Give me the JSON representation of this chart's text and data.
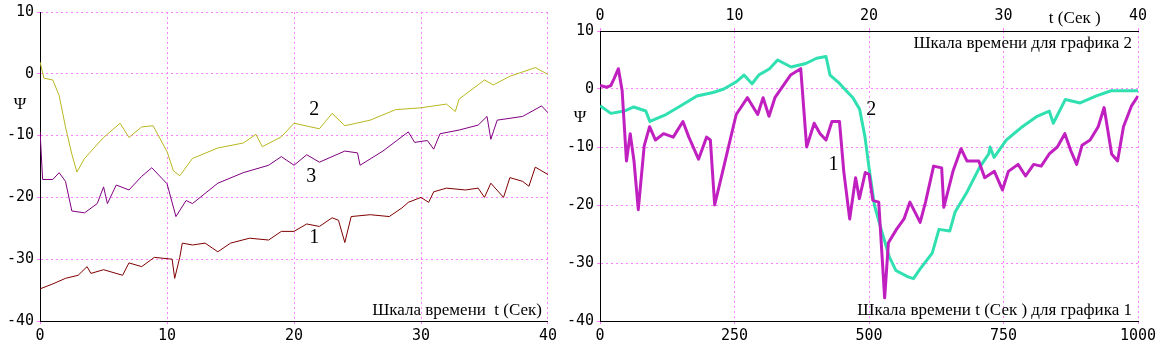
{
  "chart_data": [
    {
      "type": "line",
      "ylabel": "Ψ",
      "xlabel": "Шкала времени  t (Сек)",
      "xlim": [
        0,
        40
      ],
      "xticks": [
        0,
        10,
        20,
        30,
        40
      ],
      "ylim": [
        -40,
        10
      ],
      "yticks": [
        -40,
        -30,
        -20,
        -10,
        0,
        10
      ],
      "grid": true,
      "legend": false,
      "line_style": "solid",
      "series": [
        {
          "name": "1",
          "color": "#800000",
          "x": [
            0,
            1,
            2,
            3,
            3.7,
            4,
            5,
            6.5,
            7,
            8,
            9,
            10.4,
            10.6,
            11,
            11.2,
            12,
            13,
            14,
            15,
            16.5,
            18,
            19,
            20,
            21,
            22,
            23,
            23.5,
            24,
            24.5,
            26,
            27.5,
            28.5,
            29,
            30,
            30.6,
            31,
            32,
            33.5,
            34.5,
            35,
            35.5,
            36.5,
            37,
            38,
            38.5,
            39,
            40
          ],
          "values": [
            -34.8,
            -34,
            -33.1,
            -32.6,
            -31.2,
            -32.3,
            -31.7,
            -32.6,
            -30.6,
            -31.2,
            -29.7,
            -30,
            -33.1,
            -29.7,
            -27.4,
            -27.7,
            -27.4,
            -28.8,
            -27.4,
            -26.6,
            -26.9,
            -25.5,
            -25.5,
            -24.3,
            -24.7,
            -23.3,
            -23.7,
            -27.3,
            -23.1,
            -22.8,
            -23.1,
            -21.7,
            -20.8,
            -20,
            -20.8,
            -19.1,
            -18.5,
            -18.8,
            -18.5,
            -20,
            -17.7,
            -20,
            -16.8,
            -17.4,
            -18.2,
            -15.1,
            -16.3
          ]
        },
        {
          "name": "2",
          "color": "#b8b820",
          "x": [
            0,
            0.3,
            1,
            1.5,
            2,
            2.5,
            2.9,
            3.5,
            5,
            6.3,
            7,
            8,
            8.9,
            10,
            10.5,
            11,
            12,
            14,
            16,
            17,
            17.5,
            19,
            20,
            22,
            23,
            24,
            26,
            28,
            30,
            32,
            32.7,
            33,
            35,
            35.7,
            37,
            39,
            40
          ],
          "values": [
            1.9,
            -0.7,
            -1,
            -3.5,
            -8.6,
            -13,
            -15.9,
            -13.7,
            -10.3,
            -8,
            -10.3,
            -8.6,
            -8.4,
            -12.6,
            -15.7,
            -16.5,
            -13.7,
            -12,
            -11.2,
            -9.8,
            -11.8,
            -10.2,
            -8,
            -8.9,
            -6.4,
            -8.4,
            -7.5,
            -5.8,
            -5.5,
            -4.9,
            -6.1,
            -4.1,
            -1,
            -1.8,
            -0.4,
            1,
            -0.1
          ]
        },
        {
          "name": "3",
          "color": "#800080",
          "x": [
            0,
            0.2,
            1,
            1.5,
            2,
            2.5,
            3.5,
            4.5,
            5,
            5.3,
            6,
            7,
            8,
            8.8,
            10,
            10.7,
            11.5,
            12,
            14,
            16,
            18,
            19,
            20,
            21,
            22,
            24,
            25,
            25.2,
            27,
            29,
            29.5,
            30.5,
            31,
            31.5,
            33,
            34.5,
            35.2,
            35.5,
            36,
            38,
            39.5,
            40
          ],
          "values": [
            -9.4,
            -17.1,
            -17.1,
            -16,
            -17.4,
            -22.2,
            -22.5,
            -21,
            -18.3,
            -21,
            -18,
            -18.8,
            -16.6,
            -15.2,
            -17.8,
            -23.1,
            -20.5,
            -21,
            -17.7,
            -16,
            -14.8,
            -13.4,
            -14.8,
            -13.1,
            -14.3,
            -12.5,
            -12.8,
            -14.8,
            -12.5,
            -9.4,
            -11.1,
            -10.8,
            -12.2,
            -9.7,
            -9.1,
            -8.3,
            -6.9,
            -10.6,
            -7.5,
            -6.9,
            -5.2,
            -6.3
          ]
        }
      ]
    },
    {
      "type": "line",
      "ylabel": "Ψ",
      "xlabel": "Шкала времени t (Сек ) для графика 1",
      "x2label": "t (Сек )",
      "annotations": [
        "Шкала времени для графика 2"
      ],
      "xlim": [
        0,
        1000
      ],
      "xticks": [
        0,
        250,
        500,
        750,
        1000
      ],
      "x2lim": [
        0,
        40
      ],
      "x2ticks": [
        0,
        10,
        20,
        30,
        40
      ],
      "ylim": [
        -40,
        10
      ],
      "yticks": [
        -40,
        -30,
        -20,
        -10,
        0,
        10
      ],
      "grid": true,
      "legend": false,
      "line_style": "solid",
      "series": [
        {
          "name": "1",
          "color": "#c020c0",
          "x": [
            0,
            12,
            20,
            26,
            34,
            41,
            49,
            56,
            63,
            71,
            82,
            92,
            103,
            118,
            136,
            154,
            165,
            183,
            198,
            205,
            213,
            231,
            253,
            274,
            293,
            303,
            314,
            325,
            354,
            373,
            384,
            398,
            409,
            420,
            431,
            445,
            453,
            464,
            475,
            482,
            493,
            500,
            507,
            518,
            529,
            536,
            551,
            565,
            576,
            595,
            605,
            620,
            635,
            639,
            656,
            671,
            682,
            704,
            715,
            733,
            748,
            759,
            777,
            791,
            806,
            820,
            835,
            850,
            864,
            875,
            886,
            896,
            911,
            926,
            937,
            951,
            962,
            973,
            988,
            1000
          ],
          "values": [
            0.6,
            0.3,
            0.6,
            1.8,
            3.5,
            -0.3,
            -12.4,
            -7.7,
            -12.4,
            -20.8,
            -9.8,
            -6.5,
            -8.8,
            -7.7,
            -8.3,
            -5.6,
            -8.3,
            -12.1,
            -8.3,
            -8.8,
            -20,
            -13,
            -4.4,
            -1.5,
            -4.4,
            -1.5,
            -4.7,
            -1.5,
            2.4,
            3.5,
            -10,
            -5.9,
            -7.7,
            -8.8,
            -5.6,
            -5.6,
            -14.2,
            -22.4,
            -15.3,
            -18.9,
            -14.4,
            -14.7,
            -19.2,
            -19.5,
            -36,
            -26.5,
            -24.2,
            -22.4,
            -19.5,
            -23,
            -19.5,
            -13.3,
            -13.6,
            -20.4,
            -14.2,
            -10.3,
            -12.4,
            -12.4,
            -15.3,
            -14.2,
            -17.4,
            -14.2,
            -13,
            -15,
            -13,
            -13.3,
            -11.2,
            -10,
            -7.7,
            -10.6,
            -13,
            -9.7,
            -8.8,
            -6.5,
            -3.2,
            -11.2,
            -12.4,
            -6.5,
            -2.9,
            -1.2
          ]
        },
        {
          "name": "2",
          "color": "#30e0b0",
          "axis": "x2",
          "x": [
            0,
            0.8,
            1.8,
            2.5,
            3.4,
            3.7,
            4.9,
            6,
            7.2,
            8.4,
            9.2,
            10.1,
            10.7,
            11.3,
            11.8,
            12.6,
            13.2,
            14.2,
            15.3,
            16.1,
            16.8,
            17.1,
            17.7,
            18.3,
            18.8,
            19.3,
            19.7,
            20,
            20.4,
            20.9,
            21.5,
            22,
            22.9,
            23.3,
            23.8,
            24.7,
            25.2,
            26,
            26.4,
            27.3,
            28.2,
            28.9,
            29,
            29.3,
            30.2,
            31.4,
            32.5,
            33.4,
            33.7,
            34.6,
            35.7,
            36.9,
            38,
            40
          ],
          "values": [
            -2.9,
            -4.2,
            -3.8,
            -3.1,
            -3.8,
            -5.6,
            -4.4,
            -2.9,
            -1.2,
            -0.6,
            0,
            1.2,
            2.4,
            0.9,
            2.4,
            3.5,
            5,
            3.8,
            4.4,
            5.3,
            5.6,
            2.4,
            1.2,
            -0.3,
            -1.5,
            -3.5,
            -8.3,
            -13.6,
            -20,
            -24.2,
            -28.9,
            -31.3,
            -32.4,
            -32.7,
            -31,
            -28.3,
            -24.2,
            -24.5,
            -21.2,
            -17.7,
            -13.6,
            -11.2,
            -10,
            -11.8,
            -8.8,
            -6.5,
            -4.7,
            -3.8,
            -5.9,
            -1.8,
            -2.4,
            -1.2,
            -0.3,
            -0.3
          ]
        }
      ]
    }
  ]
}
